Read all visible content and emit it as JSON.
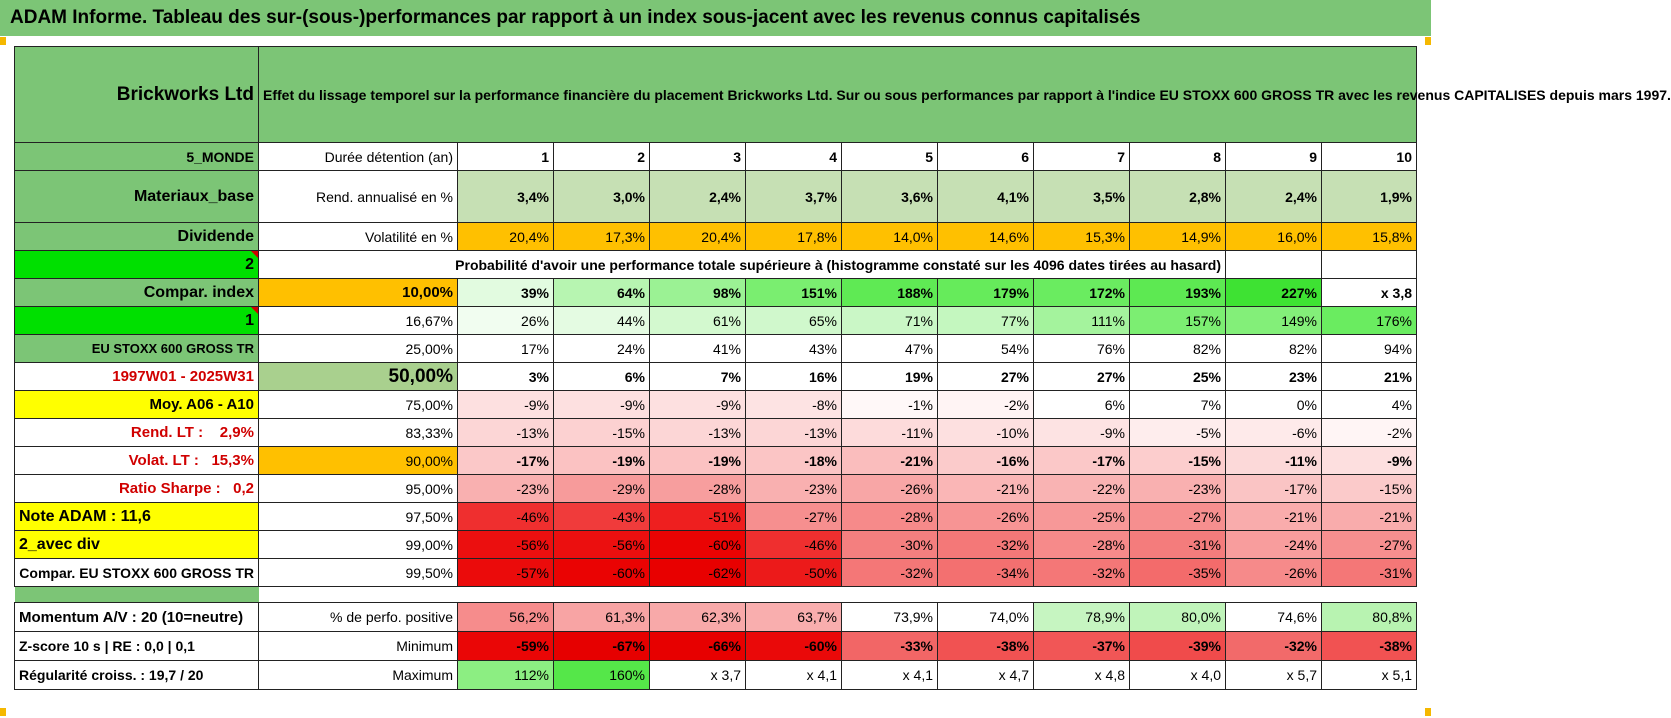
{
  "title": "ADAM Informe. Tableau des sur-(sous-)performances par rapport à un index sous-jacent avec les revenus connus capitalisés",
  "company": "Brickworks Ltd",
  "description": "Effet du lissage temporel sur la performance financière du placement Brickworks Ltd. Sur ou sous performances par rapport à l'indice EU STOXX 600 GROSS TR avec les revenus CAPITALISES depuis mars 1997.",
  "colors": {
    "banner": "#7cc576",
    "label_green": "#7cc576",
    "yellow": "#ffff00",
    "bright_green": "#00e000",
    "orange": "#ffc000"
  },
  "side_labels": {
    "region": "5_MONDE",
    "sector": "Materiaux_base",
    "dividend": "Dividende",
    "num1": "2",
    "compar": "Compar. index",
    "num2": "1",
    "index": "EU STOXX 600 GROSS TR",
    "period": "1997W01 - 2025W31",
    "moy": "Moy. A06 - A10",
    "rend_label": "Rend. LT :",
    "rend_value": "2,9%",
    "volat_label": "Volat. LT :",
    "volat_value": "15,3%",
    "sharpe_label": "Ratio Sharpe :",
    "sharpe_value": "0,2",
    "note": "Note ADAM : 11,6",
    "avec_div": "2_avec div",
    "compar_full": "Compar. EU STOXX 600 GROSS TR",
    "momentum": "Momentum A/V : 20 (10=neutre)",
    "zscore": "Z-score 10 s  |  RE : 0,0  |  0,1",
    "regularite": "Régularité croiss. : 19,7 / 20"
  },
  "row_labels": {
    "duree": "Durée détention (an)",
    "rend": "Rend. annualisé en %",
    "volat": "Volatilité en %",
    "prob": "Probabilité d'avoir une performance totale supérieure à (histogramme constaté sur les 4096 dates tirées au hasard)",
    "positive": "% de perfo. positive",
    "minimum": "Minimum",
    "maximum": "Maximum"
  },
  "years": [
    "1",
    "2",
    "3",
    "4",
    "5",
    "6",
    "7",
    "8",
    "9",
    "10"
  ],
  "rend": [
    "3,4%",
    "3,0%",
    "2,4%",
    "3,7%",
    "3,6%",
    "4,1%",
    "3,5%",
    "2,8%",
    "2,4%",
    "1,9%"
  ],
  "volat": [
    "20,4%",
    "17,3%",
    "20,4%",
    "17,8%",
    "14,0%",
    "14,6%",
    "15,3%",
    "14,9%",
    "16,0%",
    "15,8%"
  ],
  "prob_rows": [
    {
      "threshold": "10,00%",
      "values": [
        "39%",
        "64%",
        "98%",
        "151%",
        "188%",
        "179%",
        "172%",
        "193%",
        "227%",
        "x 3,8"
      ]
    },
    {
      "threshold": "16,67%",
      "values": [
        "26%",
        "44%",
        "61%",
        "65%",
        "71%",
        "77%",
        "111%",
        "157%",
        "149%",
        "176%"
      ]
    },
    {
      "threshold": "25,00%",
      "values": [
        "17%",
        "24%",
        "41%",
        "43%",
        "47%",
        "54%",
        "76%",
        "82%",
        "82%",
        "94%"
      ]
    },
    {
      "threshold": "50,00%",
      "values": [
        "3%",
        "6%",
        "7%",
        "16%",
        "19%",
        "27%",
        "27%",
        "25%",
        "23%",
        "21%"
      ]
    },
    {
      "threshold": "75,00%",
      "values": [
        "-9%",
        "-9%",
        "-9%",
        "-8%",
        "-1%",
        "-2%",
        "6%",
        "7%",
        "0%",
        "4%"
      ]
    },
    {
      "threshold": "83,33%",
      "values": [
        "-13%",
        "-15%",
        "-13%",
        "-13%",
        "-11%",
        "-10%",
        "-9%",
        "-5%",
        "-6%",
        "-2%"
      ]
    },
    {
      "threshold": "90,00%",
      "values": [
        "-17%",
        "-19%",
        "-19%",
        "-18%",
        "-21%",
        "-16%",
        "-17%",
        "-15%",
        "-11%",
        "-9%"
      ]
    },
    {
      "threshold": "95,00%",
      "values": [
        "-23%",
        "-29%",
        "-28%",
        "-23%",
        "-26%",
        "-21%",
        "-22%",
        "-23%",
        "-17%",
        "-15%"
      ]
    },
    {
      "threshold": "97,50%",
      "values": [
        "-46%",
        "-43%",
        "-51%",
        "-27%",
        "-28%",
        "-26%",
        "-25%",
        "-27%",
        "-21%",
        "-21%"
      ]
    },
    {
      "threshold": "99,00%",
      "values": [
        "-56%",
        "-56%",
        "-60%",
        "-46%",
        "-30%",
        "-32%",
        "-28%",
        "-31%",
        "-24%",
        "-27%"
      ]
    },
    {
      "threshold": "99,50%",
      "values": [
        "-57%",
        "-60%",
        "-62%",
        "-50%",
        "-32%",
        "-34%",
        "-32%",
        "-35%",
        "-26%",
        "-31%"
      ]
    }
  ],
  "positive": [
    "56,2%",
    "61,3%",
    "62,3%",
    "63,7%",
    "73,9%",
    "74,0%",
    "78,9%",
    "80,0%",
    "74,6%",
    "80,8%"
  ],
  "minimum": [
    "-59%",
    "-67%",
    "-66%",
    "-60%",
    "-33%",
    "-38%",
    "-37%",
    "-39%",
    "-32%",
    "-38%"
  ],
  "maximum": [
    "112%",
    "160%",
    "x 3,7",
    "x 4,1",
    "x 4,1",
    "x 4,7",
    "x 4,8",
    "x 4,0",
    "x 5,7",
    "x 5,1"
  ]
}
